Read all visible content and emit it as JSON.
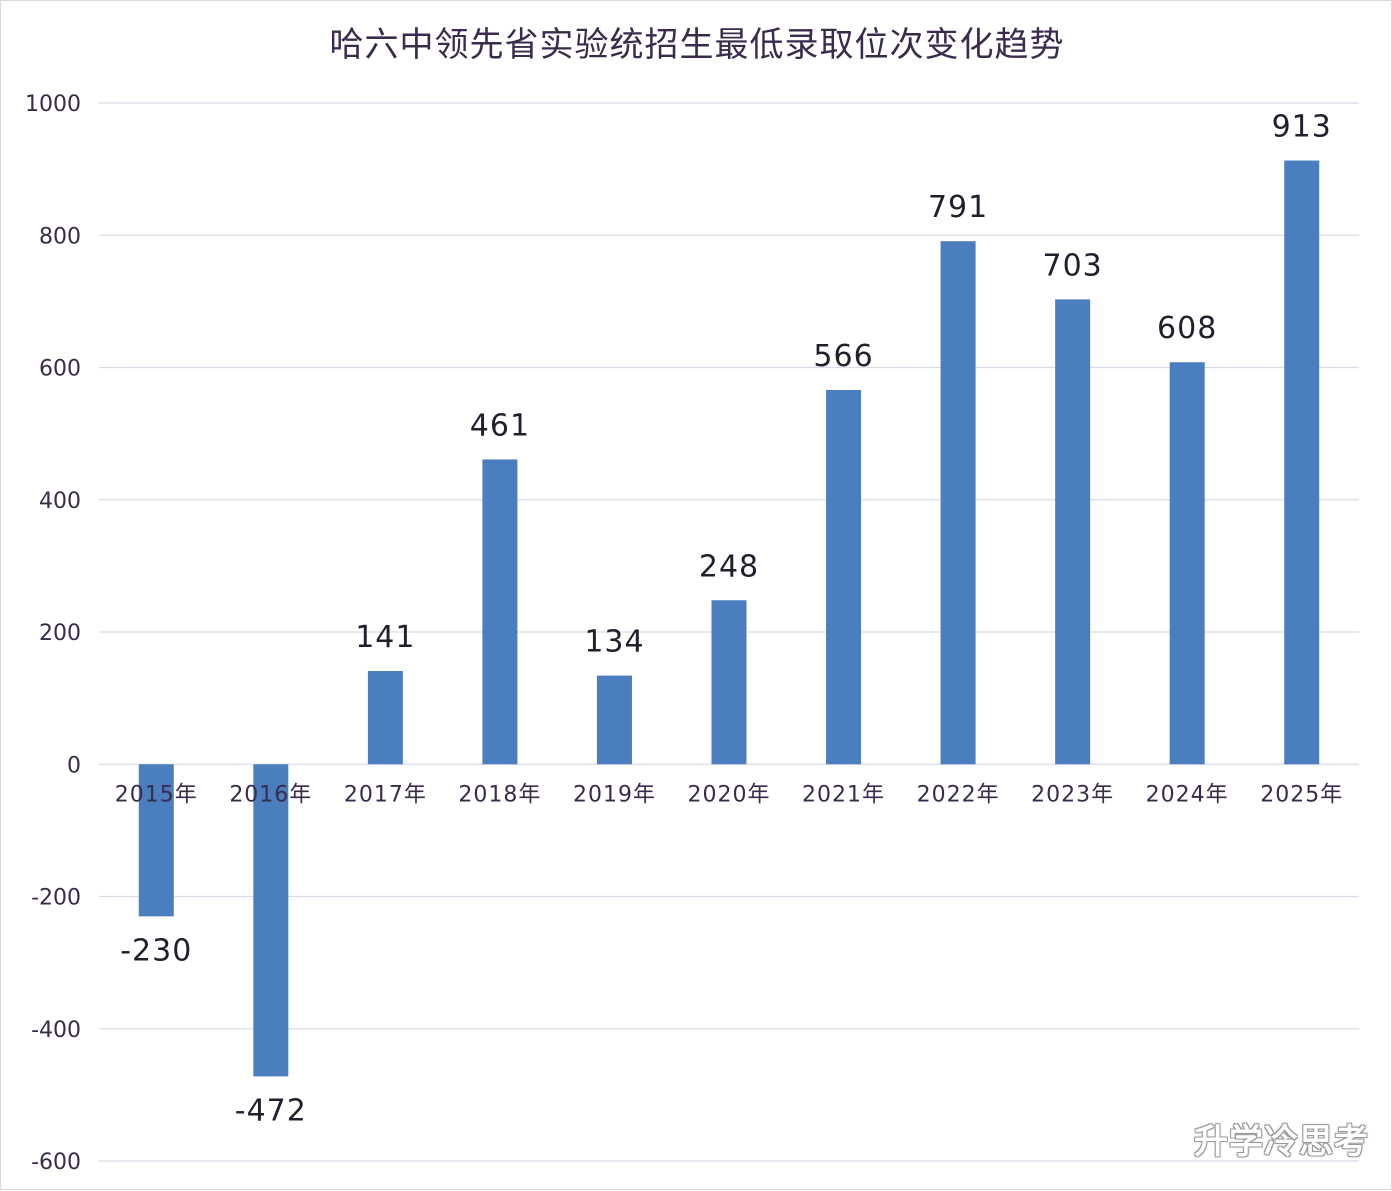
{
  "chart_data": {
    "type": "bar",
    "title": "哈六中领先省实验统招生最低录取位次变化趋势",
    "xlabel": "",
    "ylabel": "",
    "categories": [
      "2015年",
      "2016年",
      "2017年",
      "2018年",
      "2019年",
      "2020年",
      "2021年",
      "2022年",
      "2023年",
      "2024年",
      "2025年"
    ],
    "values": [
      -230,
      -472,
      141,
      461,
      134,
      248,
      566,
      791,
      703,
      608,
      913
    ],
    "data_labels": [
      "-230",
      "-472",
      "141",
      "461",
      "134",
      "248",
      "566",
      "791",
      "703",
      "608",
      "913"
    ],
    "ylim": [
      -600,
      1000
    ],
    "yticks": [
      -600,
      -400,
      -200,
      0,
      200,
      400,
      600,
      800,
      1000
    ],
    "ytick_labels": [
      "-600",
      "-400",
      "-200",
      "0",
      "200",
      "400",
      "600",
      "800",
      "1000"
    ],
    "grid": true,
    "legend": "none",
    "colors": {
      "bar": "#4a7ebf",
      "grid": "#d9dce8",
      "axis_text": "#3a2b4e",
      "label_text": "#1f1f2e"
    }
  },
  "watermark": {
    "text": "升学冷思考"
  }
}
